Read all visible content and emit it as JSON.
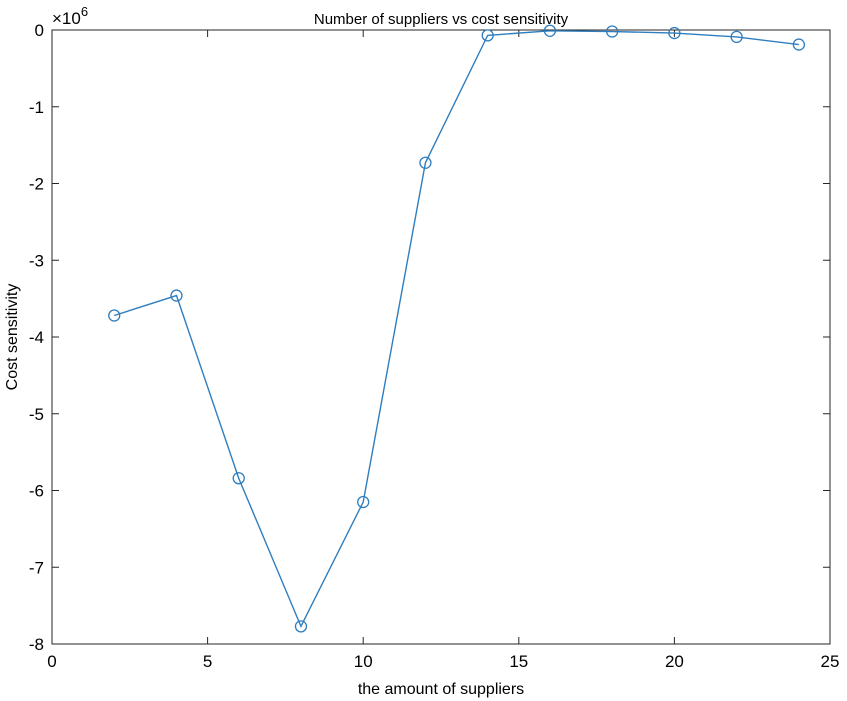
{
  "chart_data": {
    "type": "line",
    "title": "Number of suppliers vs cost sensitivity",
    "xlabel": "the amount of suppliers",
    "ylabel": "Cost sensitivity",
    "y_multiplier_label": "×10^6",
    "xlim": [
      0,
      25
    ],
    "ylim": [
      -8,
      0
    ],
    "xticks": [
      0,
      5,
      10,
      15,
      20,
      25
    ],
    "yticks": [
      0,
      -1,
      -2,
      -3,
      -4,
      -5,
      -6,
      -7,
      -8
    ],
    "grid": false,
    "marker": "circle",
    "color": "#2f7ebf",
    "series": [
      {
        "x": [
          2,
          4,
          6,
          8,
          10,
          12,
          14,
          16,
          18,
          20,
          22,
          24
        ],
        "y": [
          -3.72,
          -3.46,
          -5.84,
          -7.77,
          -6.15,
          -1.73,
          -0.07,
          -0.01,
          -0.02,
          -0.04,
          -0.09,
          -0.19
        ]
      }
    ]
  }
}
